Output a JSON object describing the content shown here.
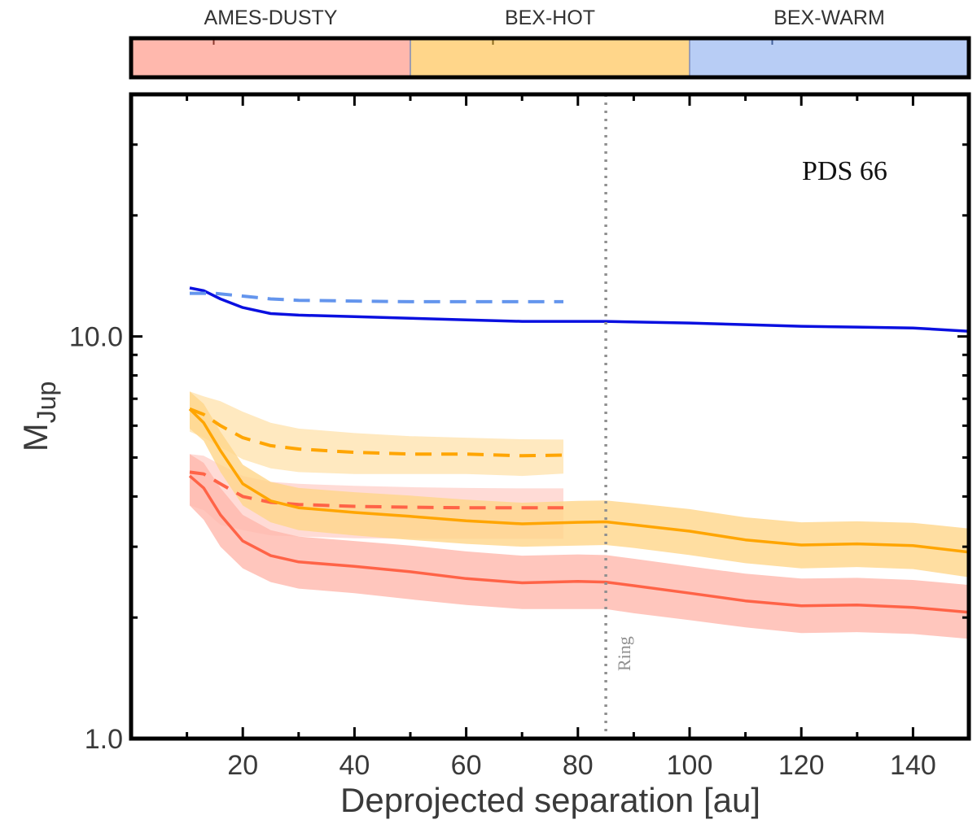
{
  "chart_data": {
    "type": "line",
    "title": "",
    "annotation": "PDS 66",
    "xlabel": "Deprojected separation [au]",
    "ylabel": "M",
    "ylabel_sub": "Jup",
    "xlim": [
      0,
      150
    ],
    "ylim": [
      1,
      40
    ],
    "yscale": "log",
    "xticks": [
      20,
      40,
      60,
      80,
      100,
      120,
      140
    ],
    "xtick_labels": [
      "20",
      "40",
      "60",
      "80",
      "100",
      "120",
      "140"
    ],
    "yticks": [
      1,
      10
    ],
    "ytick_labels": [
      "1.0",
      "10.0"
    ],
    "grid": false,
    "vline": {
      "x": 85,
      "label": "Ring",
      "color": "#909090"
    },
    "colorbar": [
      {
        "label": "AMES-DUSTY",
        "color": "#ffb8ad"
      },
      {
        "label": "BEX-HOT",
        "color": "#ffd68a"
      },
      {
        "label": "BEX-WARM",
        "color": "#b8cdf5"
      }
    ],
    "series": [
      {
        "name": "BEX-WARM (solid)",
        "model": "BEX-WARM",
        "style": "solid",
        "color": "#0a10e0",
        "x": [
          10.5,
          13,
          16,
          20,
          25,
          30,
          40,
          50,
          60,
          70,
          85,
          100,
          110,
          120,
          130,
          140,
          150
        ],
        "y": [
          13.2,
          13.0,
          12.4,
          11.8,
          11.4,
          11.3,
          11.2,
          11.1,
          11.0,
          10.9,
          10.9,
          10.8,
          10.7,
          10.6,
          10.55,
          10.5,
          10.3
        ]
      },
      {
        "name": "BEX-WARM (dashed)",
        "model": "BEX-WARM",
        "style": "dashed",
        "color": "#6495ed",
        "x": [
          10.5,
          15,
          20,
          25,
          30,
          40,
          50,
          60,
          70,
          77.4
        ],
        "y": [
          12.8,
          12.8,
          12.6,
          12.4,
          12.3,
          12.25,
          12.2,
          12.2,
          12.2,
          12.2
        ]
      },
      {
        "name": "BEX-HOT (dashed)",
        "model": "BEX-HOT",
        "style": "dashed",
        "color": "#ffa500",
        "band_color": "#ffe5b5",
        "x": [
          10.5,
          13,
          16,
          20,
          25,
          30,
          40,
          50,
          60,
          70,
          77.4
        ],
        "y": [
          6.6,
          6.4,
          6.0,
          5.6,
          5.35,
          5.25,
          5.15,
          5.1,
          5.1,
          5.05,
          5.07
        ],
        "lower": [
          5.8,
          5.6,
          5.3,
          4.95,
          4.7,
          4.6,
          4.55,
          4.55,
          4.55,
          4.5,
          4.56
        ],
        "upper": [
          7.3,
          7.1,
          6.9,
          6.5,
          6.1,
          5.9,
          5.75,
          5.65,
          5.6,
          5.55,
          5.54
        ]
      },
      {
        "name": "AMES-DUSTY (dashed)",
        "model": "AMES-DUSTY",
        "style": "dashed",
        "color": "#ff6347",
        "band_color": "#ffd5cf",
        "x": [
          10.5,
          13,
          16,
          20,
          25,
          30,
          40,
          50,
          60,
          70,
          77.4
        ],
        "y": [
          4.6,
          4.55,
          4.3,
          4.0,
          3.87,
          3.82,
          3.78,
          3.76,
          3.75,
          3.75,
          3.75
        ],
        "lower": [
          3.8,
          3.7,
          3.4,
          3.3,
          3.2,
          3.18,
          3.15,
          3.14,
          3.14,
          3.14,
          3.14
        ],
        "upper": [
          5.1,
          5.05,
          4.8,
          4.5,
          4.35,
          4.3,
          4.25,
          4.22,
          4.2,
          4.19,
          4.19
        ]
      },
      {
        "name": "BEX-HOT (solid)",
        "model": "BEX-HOT",
        "style": "solid",
        "color": "#ffa500",
        "band_color": "#ffd68a",
        "x": [
          10.5,
          13,
          16,
          20,
          25,
          30,
          40,
          50,
          60,
          70,
          80,
          85,
          90,
          100,
          110,
          120,
          130,
          140,
          150
        ],
        "y": [
          6.6,
          6.1,
          5.2,
          4.3,
          3.9,
          3.75,
          3.65,
          3.57,
          3.48,
          3.42,
          3.45,
          3.46,
          3.4,
          3.28,
          3.12,
          3.03,
          3.05,
          3.02,
          2.91
        ],
        "lower": [
          5.9,
          5.5,
          4.6,
          3.8,
          3.45,
          3.3,
          3.2,
          3.12,
          3.05,
          3.0,
          3.02,
          3.03,
          2.98,
          2.86,
          2.73,
          2.65,
          2.67,
          2.64,
          2.52
        ],
        "upper": [
          7.3,
          6.8,
          5.8,
          4.8,
          4.35,
          4.2,
          4.1,
          4.02,
          3.93,
          3.86,
          3.9,
          3.91,
          3.85,
          3.72,
          3.55,
          3.45,
          3.47,
          3.44,
          3.33
        ]
      },
      {
        "name": "AMES-DUSTY (solid)",
        "model": "AMES-DUSTY",
        "style": "solid",
        "color": "#ff6347",
        "band_color": "#ffb8ad",
        "x": [
          10.5,
          13,
          16,
          20,
          25,
          30,
          40,
          50,
          60,
          70,
          80,
          85,
          90,
          100,
          110,
          120,
          130,
          140,
          150
        ],
        "y": [
          4.5,
          4.2,
          3.6,
          3.1,
          2.85,
          2.75,
          2.68,
          2.6,
          2.5,
          2.44,
          2.46,
          2.45,
          2.4,
          2.3,
          2.2,
          2.14,
          2.15,
          2.12,
          2.06
        ],
        "lower": [
          3.8,
          3.5,
          3.0,
          2.65,
          2.45,
          2.36,
          2.3,
          2.22,
          2.15,
          2.1,
          2.1,
          2.1,
          2.05,
          1.97,
          1.89,
          1.83,
          1.84,
          1.82,
          1.77
        ],
        "upper": [
          5.1,
          4.85,
          4.2,
          3.6,
          3.3,
          3.18,
          3.1,
          3.02,
          2.92,
          2.85,
          2.87,
          2.86,
          2.8,
          2.68,
          2.57,
          2.5,
          2.51,
          2.48,
          2.41
        ]
      }
    ]
  }
}
